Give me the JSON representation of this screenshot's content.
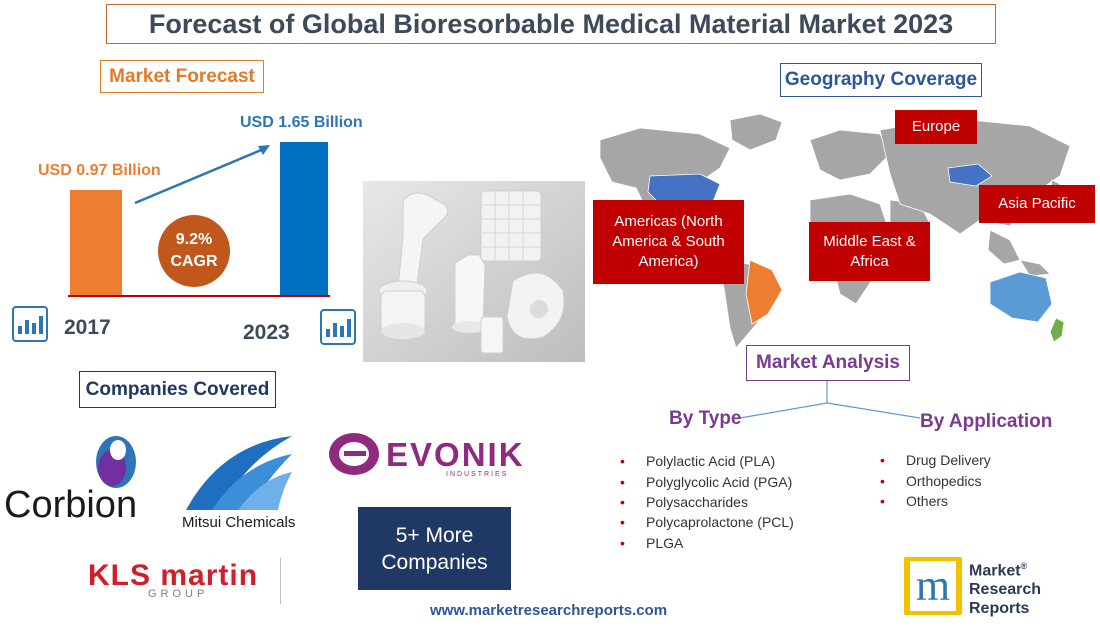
{
  "title": "Forecast of Global Bioresorbable Medical Material Market 2023",
  "market_forecast": {
    "heading": "Market Forecast",
    "value_2017": "USD 0.97 Billion",
    "value_2023": "USD 1.65 Billion",
    "cagr_value": "9.2%",
    "cagr_label": "CAGR",
    "year_start": "2017",
    "year_end": "2023"
  },
  "geography": {
    "heading": "Geography Coverage",
    "regions": [
      "Europe",
      "Americas (North America & South America)",
      "Middle East & Africa",
      "Asia Pacific"
    ]
  },
  "companies": {
    "heading": "Companies Covered",
    "logos": [
      "Corbion",
      "Mitsui Chemicals",
      "EVONIK",
      "INDUSTRIES",
      "KLS martin",
      "GROUP"
    ],
    "more": "5+ More Companies"
  },
  "analysis": {
    "heading": "Market Analysis",
    "by_type_heading": "By Type",
    "by_type": [
      "Polylactic Acid (PLA)",
      "Polyglycolic Acid (PGA)",
      "Polysaccharides",
      "Polycaprolactone (PCL)",
      "PLGA"
    ],
    "by_application_heading": "By Application",
    "by_application": [
      "Drug Delivery",
      "Orthopedics",
      "Others"
    ]
  },
  "brand": {
    "line1": "Market",
    "line2": "Research",
    "line3": "Reports",
    "mark": "m",
    "registered": "®"
  },
  "footer_url": "www.marketresearchreports.com",
  "colors": {
    "orange": "#ed7d31",
    "blue": "#0070c0",
    "red": "#c00000",
    "navy": "#1f3864",
    "purple": "#7a3b8f",
    "cagr_circle": "#c0571d"
  }
}
